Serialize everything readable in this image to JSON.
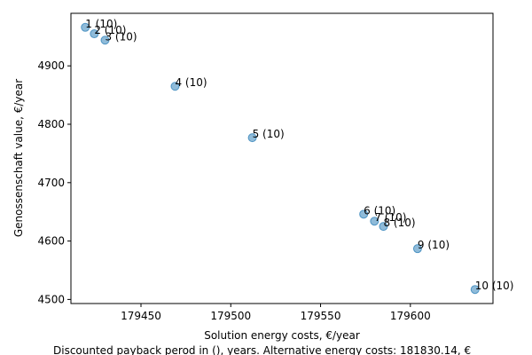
{
  "chart_data": {
    "type": "scatter",
    "xlabel": "Solution energy costs, €/year",
    "ylabel": "Genossenschaft value, €/year",
    "footnote": "Discounted payback perod in (), years. Alternative energy costs: 181830.14, €",
    "xlim": [
      179411,
      179646
    ],
    "ylim": [
      4493,
      4990
    ],
    "xticks": [
      179450,
      179500,
      179550,
      179600
    ],
    "xtick_labels": [
      "179450",
      "179500",
      "179550",
      "179600"
    ],
    "yticks": [
      4500,
      4600,
      4700,
      4800,
      4900
    ],
    "ytick_labels": [
      "4500",
      "4600",
      "4700",
      "4800",
      "4900"
    ],
    "grid": false,
    "marker_color": "#1f77b4",
    "points": [
      {
        "x": 179419,
        "y": 4966,
        "label": "1 (10)"
      },
      {
        "x": 179424,
        "y": 4955,
        "label": "2 (10)"
      },
      {
        "x": 179430,
        "y": 4944,
        "label": "3 (10)"
      },
      {
        "x": 179469,
        "y": 4865,
        "label": "4 (10)"
      },
      {
        "x": 179512,
        "y": 4777,
        "label": "5 (10)"
      },
      {
        "x": 179574,
        "y": 4646,
        "label": "6 (10)"
      },
      {
        "x": 179580,
        "y": 4634,
        "label": "7 (10)"
      },
      {
        "x": 179585,
        "y": 4625,
        "label": "8 (10)"
      },
      {
        "x": 179604,
        "y": 4587,
        "label": "9 (10)"
      },
      {
        "x": 179636,
        "y": 4517,
        "label": "10 (10)"
      }
    ]
  }
}
